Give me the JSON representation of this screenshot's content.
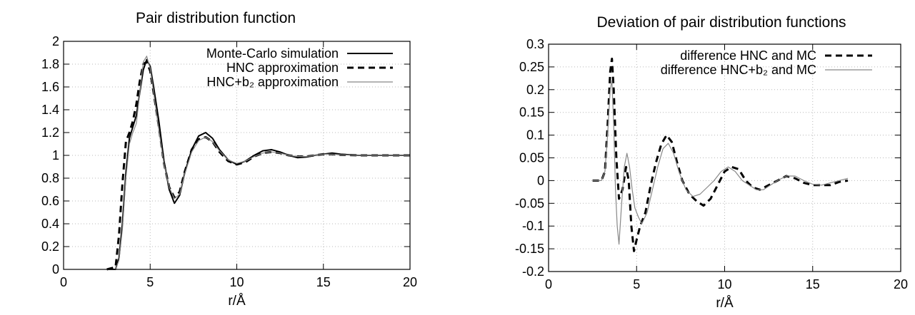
{
  "chart_data": [
    {
      "type": "line",
      "title": "Pair distribution function",
      "xlabel": "r/Å",
      "ylabel": "",
      "xlim": [
        0,
        20
      ],
      "ylim": [
        0,
        2
      ],
      "xticks": [
        "0",
        "5",
        "10",
        "15",
        "20"
      ],
      "yticks": [
        "0",
        "0.2",
        "0.4",
        "0.6",
        "0.8",
        "1",
        "1.2",
        "1.4",
        "1.6",
        "1.8",
        "2"
      ],
      "grid": true,
      "legend_position": "top-right",
      "series": [
        {
          "name": "Monte-Carlo simulation",
          "style": "solid",
          "color": "#000000",
          "x": [
            2.5,
            3.0,
            3.2,
            3.4,
            3.6,
            3.8,
            4.0,
            4.2,
            4.4,
            4.6,
            4.8,
            5.0,
            5.2,
            5.5,
            5.8,
            6.1,
            6.4,
            6.7,
            7.0,
            7.4,
            7.8,
            8.2,
            8.6,
            9.0,
            9.5,
            10.0,
            10.5,
            11.0,
            11.5,
            12.0,
            12.5,
            13.0,
            13.5,
            14.0,
            14.5,
            15.0,
            15.5,
            16.0,
            17.0,
            18.0,
            19.0,
            20.0
          ],
          "y": [
            0,
            0.0,
            0.1,
            0.4,
            0.85,
            1.15,
            1.25,
            1.35,
            1.55,
            1.75,
            1.84,
            1.78,
            1.6,
            1.3,
            0.95,
            0.7,
            0.58,
            0.65,
            0.85,
            1.05,
            1.17,
            1.2,
            1.15,
            1.05,
            0.96,
            0.92,
            0.95,
            1.0,
            1.04,
            1.05,
            1.03,
            1.0,
            0.98,
            0.985,
            1.0,
            1.01,
            1.02,
            1.01,
            1.0,
            1.0,
            1.0,
            1.0
          ]
        },
        {
          "name": "HNC approximation",
          "style": "dashed",
          "color": "#000000",
          "x": [
            2.5,
            3.0,
            3.2,
            3.4,
            3.6,
            3.8,
            4.0,
            4.2,
            4.4,
            4.6,
            4.8,
            5.0,
            5.2,
            5.5,
            5.8,
            6.1,
            6.4,
            6.7,
            7.0,
            7.4,
            7.8,
            8.2,
            8.6,
            9.0,
            9.5,
            10.0,
            10.5,
            11.0,
            11.5,
            12.0,
            12.5,
            13.0,
            13.5,
            14.0,
            14.5,
            15.0,
            15.5,
            16.0,
            17.0,
            18.0,
            19.0,
            20.0
          ],
          "y": [
            0,
            0.02,
            0.3,
            0.75,
            1.12,
            1.2,
            1.3,
            1.45,
            1.65,
            1.8,
            1.82,
            1.74,
            1.55,
            1.25,
            0.93,
            0.72,
            0.63,
            0.68,
            0.86,
            1.05,
            1.14,
            1.16,
            1.12,
            1.03,
            0.95,
            0.92,
            0.94,
            0.99,
            1.02,
            1.03,
            1.02,
            1.0,
            0.99,
            0.99,
            1.0,
            1.01,
            1.01,
            1.005,
            1.0,
            1.0,
            1.0,
            1.0
          ]
        },
        {
          "name": "HNC+b₂ approximation",
          "style": "thin",
          "color": "#888888",
          "x": [
            2.5,
            3.0,
            3.2,
            3.4,
            3.6,
            3.8,
            4.0,
            4.2,
            4.4,
            4.6,
            4.8,
            5.0,
            5.2,
            5.5,
            5.8,
            6.1,
            6.4,
            6.7,
            7.0,
            7.4,
            7.8,
            8.2,
            8.6,
            9.0,
            9.5,
            10.0,
            10.5,
            11.0,
            11.5,
            12.0,
            12.5,
            13.0,
            13.5,
            14.0,
            14.5,
            15.0,
            15.5,
            16.0,
            17.0,
            18.0,
            19.0,
            20.0
          ],
          "y": [
            0,
            0.0,
            0.08,
            0.35,
            0.8,
            1.1,
            1.2,
            1.28,
            1.55,
            1.82,
            1.87,
            1.76,
            1.55,
            1.22,
            0.92,
            0.72,
            0.62,
            0.66,
            0.84,
            1.03,
            1.13,
            1.16,
            1.12,
            1.04,
            0.96,
            0.93,
            0.95,
            0.99,
            1.02,
            1.03,
            1.02,
            1.0,
            0.99,
            0.99,
            1.0,
            1.01,
            1.01,
            1.005,
            1.0,
            1.0,
            1.0,
            1.0
          ]
        }
      ]
    },
    {
      "type": "line",
      "title": "Deviation of pair distribution functions",
      "xlabel": "r/Å",
      "ylabel": "",
      "xlim": [
        0,
        20
      ],
      "ylim": [
        -0.2,
        0.3
      ],
      "xticks": [
        "0",
        "5",
        "10",
        "15",
        "20"
      ],
      "yticks": [
        "-0.2",
        "-0.15",
        "-0.1",
        "-0.05",
        "0",
        "0.05",
        "0.1",
        "0.15",
        "0.2",
        "0.25",
        "0.3"
      ],
      "grid": true,
      "legend_position": "top-right",
      "series": [
        {
          "name": "difference HNC and MC",
          "style": "dashed",
          "color": "#000000",
          "x": [
            2.5,
            3.0,
            3.2,
            3.35,
            3.5,
            3.6,
            3.7,
            3.85,
            4.0,
            4.2,
            4.4,
            4.55,
            4.7,
            4.85,
            5.0,
            5.2,
            5.5,
            5.8,
            6.1,
            6.4,
            6.7,
            7.0,
            7.3,
            7.6,
            8.0,
            8.4,
            8.8,
            9.2,
            9.6,
            10.0,
            10.4,
            10.8,
            11.2,
            11.6,
            12.0,
            12.5,
            13.0,
            13.5,
            14.0,
            14.5,
            15.0,
            15.5,
            16.0,
            16.5,
            17.0
          ],
          "y": [
            0,
            0,
            0.02,
            0.12,
            0.24,
            0.268,
            0.2,
            0.05,
            -0.04,
            -0.02,
            0.03,
            0.0,
            -0.1,
            -0.155,
            -0.13,
            -0.1,
            -0.07,
            -0.01,
            0.04,
            0.08,
            0.1,
            0.085,
            0.04,
            0.0,
            -0.03,
            -0.045,
            -0.055,
            -0.04,
            -0.01,
            0.02,
            0.03,
            0.025,
            0.0,
            -0.015,
            -0.02,
            -0.01,
            0.0,
            0.01,
            0.005,
            -0.005,
            -0.01,
            -0.01,
            -0.01,
            -0.003,
            0.0
          ]
        },
        {
          "name": "difference HNC+b₂ and MC",
          "style": "thin",
          "color": "#888888",
          "x": [
            2.5,
            3.0,
            3.2,
            3.35,
            3.5,
            3.6,
            3.7,
            3.8,
            3.9,
            4.0,
            4.15,
            4.3,
            4.45,
            4.6,
            4.75,
            4.9,
            5.1,
            5.3,
            5.6,
            5.9,
            6.2,
            6.5,
            6.8,
            7.1,
            7.4,
            7.8,
            8.2,
            8.6,
            9.0,
            9.4,
            9.8,
            10.2,
            10.6,
            11.0,
            11.4,
            11.8,
            12.2,
            12.6,
            13.0,
            13.5,
            14.0,
            14.5,
            15.0,
            15.5,
            16.0,
            16.5,
            17.0
          ],
          "y": [
            0,
            0,
            0.02,
            0.1,
            0.2,
            0.22,
            0.12,
            -0.02,
            -0.1,
            -0.14,
            -0.05,
            0.03,
            0.06,
            0.03,
            -0.02,
            -0.06,
            -0.08,
            -0.095,
            -0.07,
            -0.02,
            0.03,
            0.07,
            0.082,
            0.06,
            0.02,
            -0.02,
            -0.035,
            -0.03,
            -0.015,
            0.0,
            0.02,
            0.03,
            0.02,
            0.0,
            -0.01,
            -0.02,
            -0.02,
            -0.01,
            0.0,
            0.01,
            0.01,
            0.0,
            -0.008,
            -0.01,
            -0.005,
            0.0,
            0.005
          ]
        }
      ]
    }
  ]
}
